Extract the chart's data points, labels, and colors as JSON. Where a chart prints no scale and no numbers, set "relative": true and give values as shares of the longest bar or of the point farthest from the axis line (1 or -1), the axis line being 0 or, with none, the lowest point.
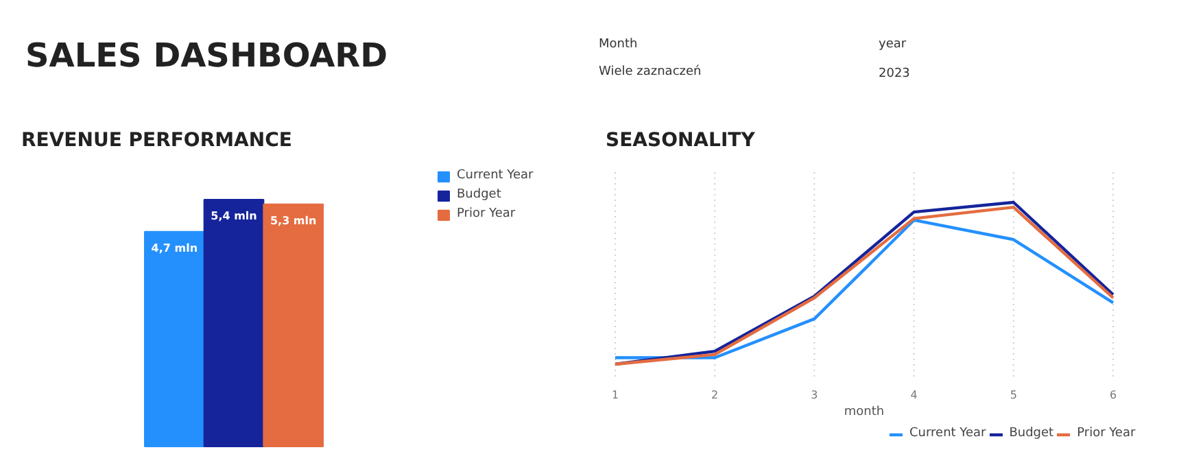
{
  "chart_data": [
    {
      "type": "other",
      "title": "SALES DASHBOARD",
      "annotations": [
        "Month",
        "Wiele zaznaczeń",
        "year",
        "2023"
      ]
    },
    {
      "type": "bar",
      "title": "REVENUE PERFORMANCE",
      "categories": [
        null
      ],
      "legend": "top right",
      "grid": false,
      "series": [
        {
          "name": "Current Year",
          "color": "#2490fd",
          "values": [
            4.7
          ],
          "value_labels": [
            "4,7 mln"
          ]
        },
        {
          "name": "Budget",
          "color": "#15249b",
          "values": [
            5.4
          ],
          "value_labels": [
            "5,4 mln"
          ]
        },
        {
          "name": "Prior Year",
          "color": "#e46c40",
          "values": [
            5.3
          ],
          "value_labels": [
            "5,3 mln"
          ]
        }
      ]
    },
    {
      "type": "line",
      "title": "SEASONALITY",
      "xlabel": "month",
      "relative": true,
      "x": [
        1,
        2,
        3,
        4,
        5,
        6
      ],
      "xlim": [
        1,
        6
      ],
      "xticks": [
        1,
        2,
        3,
        4,
        5,
        6
      ],
      "grid": "x",
      "legend": "bottom right",
      "tick_labels": "x",
      "marker": "none",
      "line_style": "solid",
      "series": [
        {
          "name": "Current Year",
          "color": "#2490fd",
          "values": [
            0.04,
            0.04,
            0.28,
            0.89,
            0.77,
            0.38
          ]
        },
        {
          "name": "Budget",
          "color": "#15249b",
          "values": [
            0.0,
            0.08,
            0.42,
            0.94,
            1.0,
            0.43
          ]
        },
        {
          "name": "Prior Year",
          "color": "#e46c40",
          "values": [
            0.0,
            0.06,
            0.41,
            0.9,
            0.97,
            0.41
          ]
        }
      ]
    }
  ]
}
